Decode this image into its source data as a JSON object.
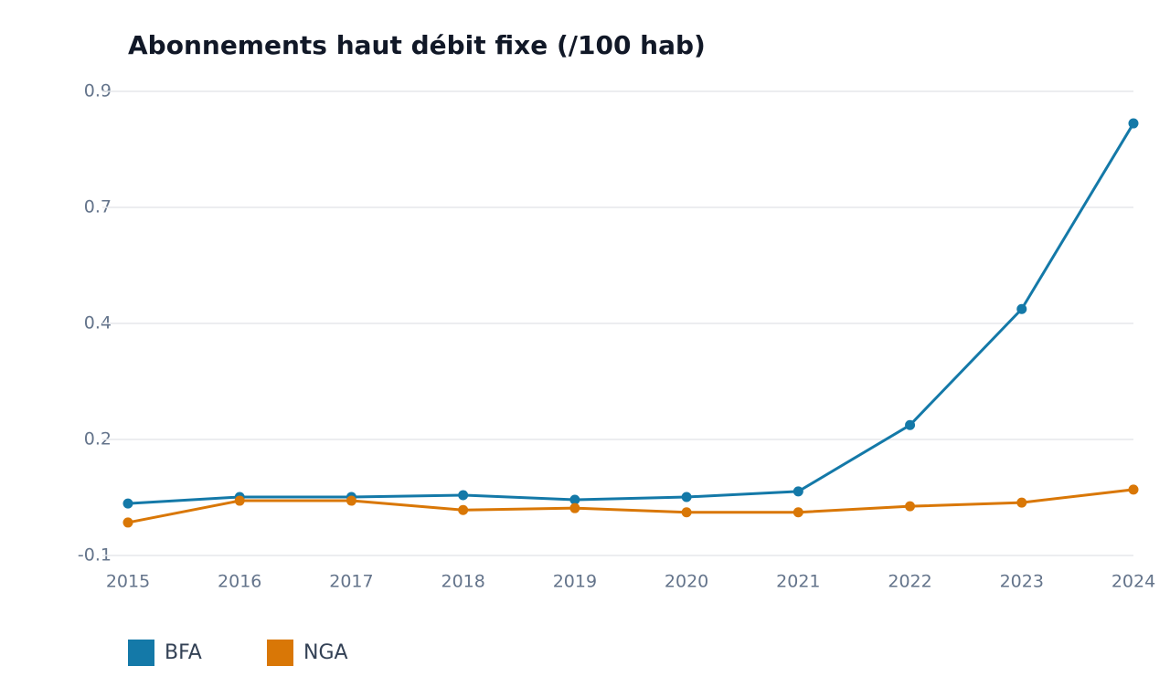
{
  "chart_data": {
    "type": "line",
    "title": "Abonnements haut débit fixe (/100 hab)",
    "x": [
      2015,
      2016,
      2017,
      2018,
      2019,
      2020,
      2021,
      2022,
      2023,
      2024
    ],
    "xlim": [
      2015,
      2024
    ],
    "xticks": [
      2015,
      2016,
      2017,
      2018,
      2019,
      2020,
      2021,
      2022,
      2023,
      2024
    ],
    "ylim": [
      -0.1,
      0.9
    ],
    "yticks": [
      -0.1,
      {
        "value": 0.15,
        "label": "0.2"
      },
      0.4,
      {
        "value": 0.65,
        "label": "0.7"
      },
      0.9
    ],
    "grid": true,
    "series": [
      {
        "name": "BFA",
        "color": "#1479a8",
        "values": [
          0.012,
          0.026,
          0.026,
          0.03,
          0.02,
          0.026,
          0.038,
          0.181,
          0.431,
          0.831
        ]
      },
      {
        "name": "NGA",
        "color": "#d97706",
        "values": [
          -0.029,
          0.018,
          0.018,
          -0.002,
          0.002,
          -0.007,
          -0.007,
          0.006,
          0.014,
          0.042
        ]
      }
    ]
  }
}
